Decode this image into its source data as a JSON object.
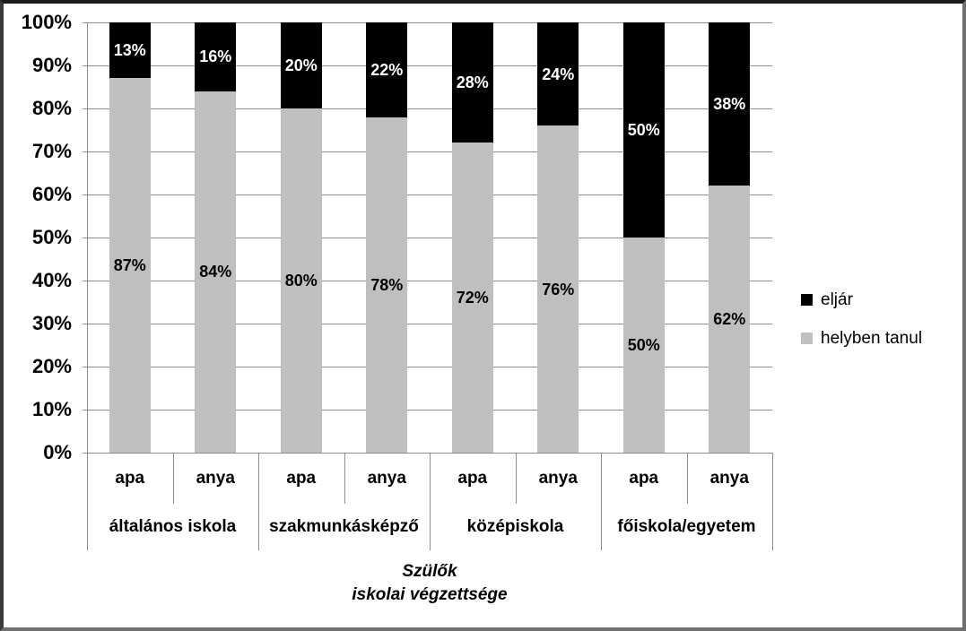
{
  "colors": {
    "series_eljar": "#000000",
    "series_helyben_tanul": "#bfbfbf",
    "gridline": "#8c8c8c",
    "axis_line": "#8c8c8c",
    "data_label_on_black": "#ffffff",
    "data_label_on_gray": "#000000",
    "background": "#ffffff"
  },
  "legend": {
    "position": "right",
    "items": [
      {
        "label": "eljár",
        "color": "#000000",
        "swatch": "black-square-icon"
      },
      {
        "label": "helyben tanul",
        "color": "#bfbfbf",
        "swatch": "gray-square-icon"
      }
    ]
  },
  "chart_data": {
    "type": "bar",
    "subtype": "100-percent-stacked-column",
    "title": "",
    "xlabel": "Szülők iskolai végzettsége",
    "x_axis_title_lines": [
      "Szülők",
      "iskolai végzettsége"
    ],
    "ylabel": "",
    "ylim": [
      0,
      100
    ],
    "grid": true,
    "y_axis": {
      "min": 0,
      "max": 100,
      "step": 10,
      "ticks": [
        {
          "value": 0,
          "label": "0%"
        },
        {
          "value": 10,
          "label": "10%"
        },
        {
          "value": 20,
          "label": "20%"
        },
        {
          "value": 30,
          "label": "30%"
        },
        {
          "value": 40,
          "label": "40%"
        },
        {
          "value": 50,
          "label": "50%"
        },
        {
          "value": 60,
          "label": "60%"
        },
        {
          "value": 70,
          "label": "70%"
        },
        {
          "value": 80,
          "label": "80%"
        },
        {
          "value": 90,
          "label": "90%"
        },
        {
          "value": 100,
          "label": "100%"
        }
      ]
    },
    "series_order_bottom_to_top": [
      "helyben tanul",
      "eljár"
    ],
    "categories": [
      "apa",
      "anya",
      "apa",
      "anya",
      "apa",
      "anya",
      "apa",
      "anya"
    ],
    "series": [
      {
        "name": "helyben tanul",
        "color": "#bfbfbf",
        "values": [
          87,
          84,
          80,
          78,
          72,
          76,
          50,
          62
        ]
      },
      {
        "name": "eljár",
        "color": "#000000",
        "values": [
          13,
          16,
          20,
          22,
          28,
          24,
          50,
          38
        ]
      }
    ],
    "groups": [
      {
        "label": "általános iskola",
        "bars": [
          {
            "category": "apa",
            "helyben_tanul": 87,
            "eljar": 13
          },
          {
            "category": "anya",
            "helyben_tanul": 84,
            "eljar": 16
          }
        ]
      },
      {
        "label": "szakmunkásképző",
        "bars": [
          {
            "category": "apa",
            "helyben_tanul": 80,
            "eljar": 20
          },
          {
            "category": "anya",
            "helyben_tanul": 78,
            "eljar": 22
          }
        ]
      },
      {
        "label": "középiskola",
        "bars": [
          {
            "category": "apa",
            "helyben_tanul": 72,
            "eljar": 28
          },
          {
            "category": "anya",
            "helyben_tanul": 76,
            "eljar": 24
          }
        ]
      },
      {
        "label": "főiskola/egyetem",
        "bars": [
          {
            "category": "apa",
            "helyben_tanul": 50,
            "eljar": 50
          },
          {
            "category": "anya",
            "helyben_tanul": 62,
            "eljar": 38
          }
        ]
      }
    ],
    "data_label_suffix": "%",
    "legend_position": "right-middle"
  }
}
